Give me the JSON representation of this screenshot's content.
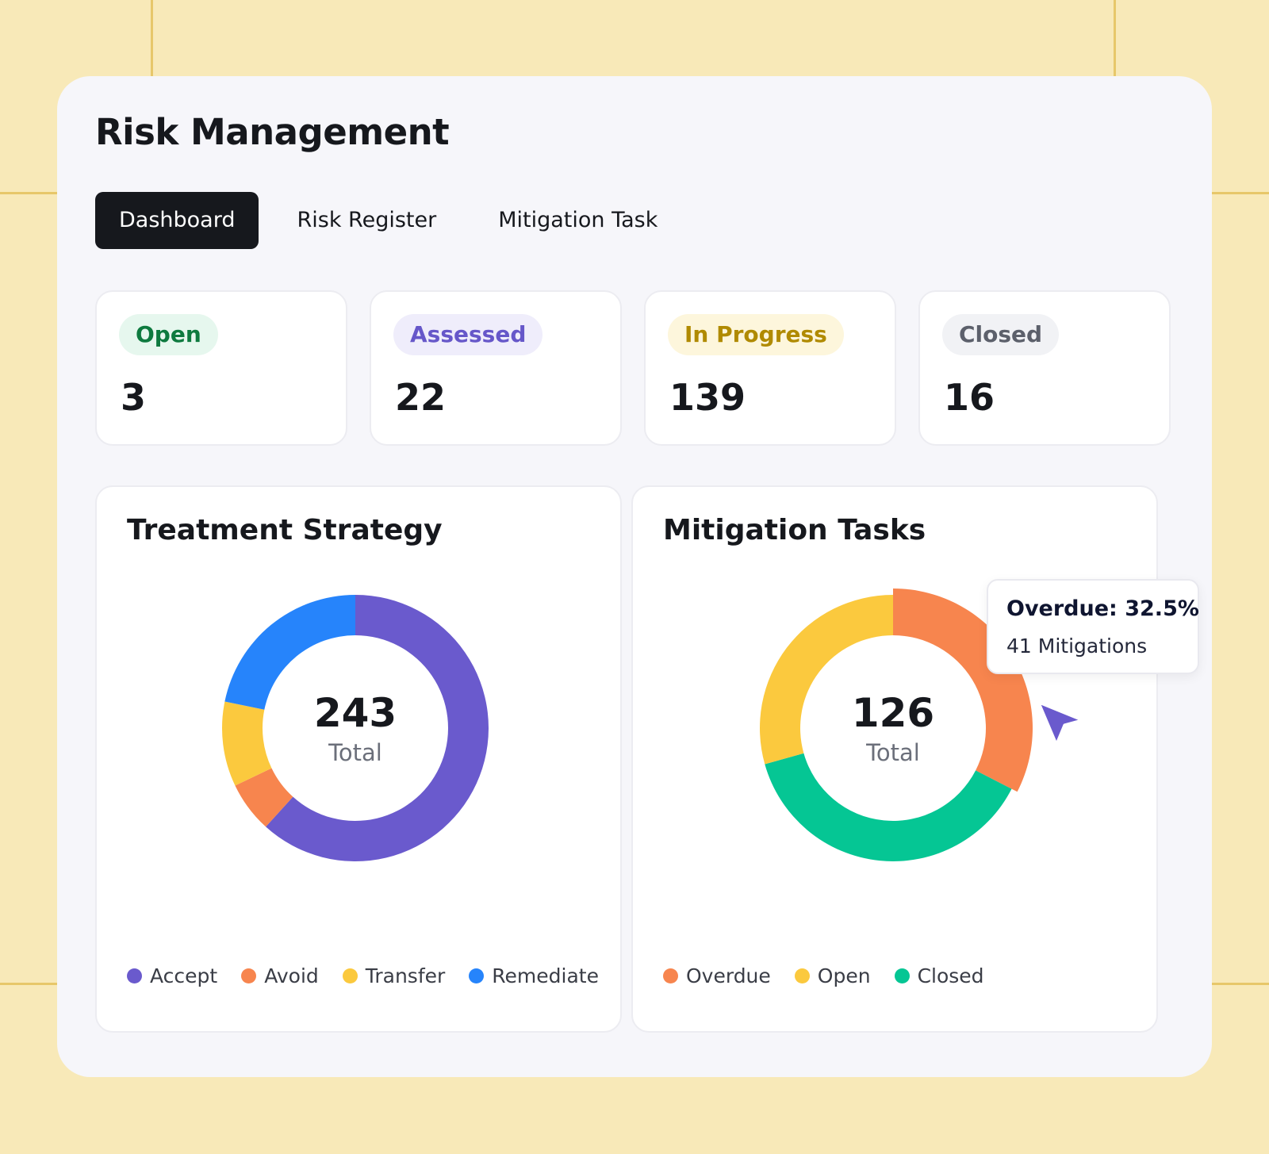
{
  "page": {
    "title": "Risk Management"
  },
  "tabs": [
    {
      "label": "Dashboard",
      "active": true
    },
    {
      "label": "Risk Register",
      "active": false
    },
    {
      "label": "Mitigation Task",
      "active": false
    }
  ],
  "stats": [
    {
      "label": "Open",
      "value": "3",
      "badge_bg": "#e6f7ee",
      "badge_fg": "#0e7a3f"
    },
    {
      "label": "Assessed",
      "value": "22",
      "badge_bg": "#efedfb",
      "badge_fg": "#6657c9"
    },
    {
      "label": "In Progress",
      "value": "139",
      "badge_bg": "#fdf6dc",
      "badge_fg": "#b08a00"
    },
    {
      "label": "Closed",
      "value": "16",
      "badge_bg": "#f1f2f5",
      "badge_fg": "#5c606b"
    }
  ],
  "treatment": {
    "title": "Treatment Strategy",
    "center_value": "243",
    "center_label": "Total"
  },
  "mitigation": {
    "title": "Mitigation Tasks",
    "center_value": "126",
    "center_label": "Total",
    "tooltip": {
      "title": "Overdue: 32.5%",
      "subtitle": "41 Mitigations"
    }
  },
  "chart_data": [
    {
      "type": "pie",
      "title": "Treatment Strategy",
      "categories": [
        "Accept",
        "Avoid",
        "Transfer",
        "Remediate"
      ],
      "values": [
        150,
        15,
        25,
        53
      ],
      "colors": [
        "#6a5acd",
        "#f7854e",
        "#fbc93e",
        "#2684fb"
      ],
      "legend": "bottom"
    },
    {
      "type": "pie",
      "title": "Mitigation Tasks",
      "categories": [
        "Overdue",
        "Open",
        "Closed"
      ],
      "values": [
        41,
        37,
        48
      ],
      "colors": [
        "#f7854e",
        "#fbc93e",
        "#05c694"
      ],
      "legend": "bottom"
    }
  ],
  "icons": {
    "cursor": "cursor-arrow-icon",
    "cursor_color": "#6a5acd"
  }
}
